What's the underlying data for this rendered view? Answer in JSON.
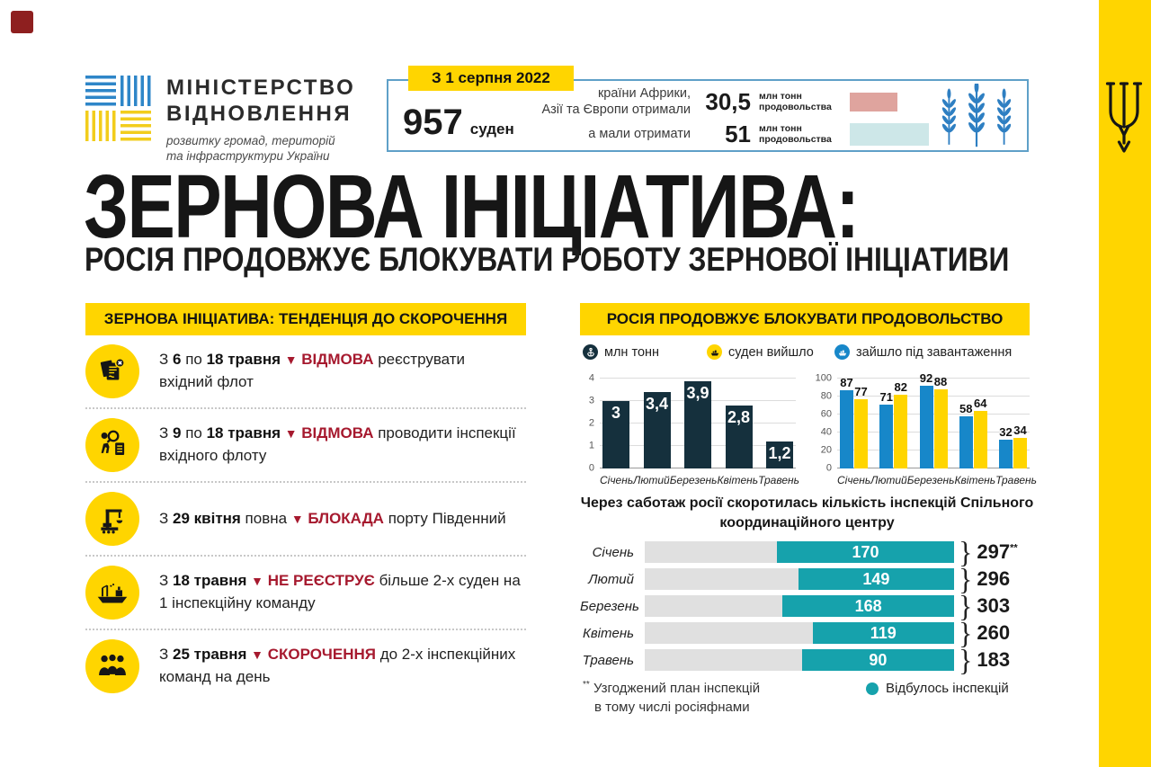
{
  "decorations": {
    "corner_square_color": "#8e1f1f",
    "side_band_color": "#ffd500",
    "emblem_icon": "tryzub-icon"
  },
  "logo": {
    "title_line1": "МІНІСТЕРСТВО",
    "title_line2": "ВІДНОВЛЕННЯ",
    "subtitle_line1": "розвитку громад, територій",
    "subtitle_line2": "та інфраструктури України"
  },
  "header_box": {
    "badge": "З 1 серпня 2022",
    "ships_number": "957",
    "ships_label": "суден",
    "received_label_line1": "країни Африки,",
    "received_label_line2": "Азії та Європи отримали",
    "expected_label": "а мали отримати",
    "received_value": "30,5",
    "expected_value": "51",
    "unit_line1": "млн тонн",
    "unit_line2": "продовольства",
    "received_bar_color": "#dfa49e",
    "expected_bar_color": "#cde7e8",
    "wheat_icon_color": "#2e7fc2"
  },
  "title": {
    "main": "ЗЕРНОВА ІНІЦІАТИВА:",
    "subtitle": "РОСІЯ ПРОДОВЖУЄ БЛОКУВАТИ РОБОТУ ЗЕРНОВОЇ ІНІЦІАТИВИ"
  },
  "left_panel": {
    "header": "ЗЕРНОВА ІНІЦІАТИВА: ТЕНДЕНЦІЯ ДО СКОРОЧЕННЯ",
    "items": [
      {
        "icon": "document-rejected-icon",
        "segments": [
          [
            "З ",
            "n"
          ],
          [
            "6",
            "b"
          ],
          [
            " по ",
            "n"
          ],
          [
            "18 травня",
            "b"
          ],
          [
            " ",
            "n"
          ],
          [
            "▼",
            "t"
          ],
          [
            " ",
            "n"
          ],
          [
            "ВІДМОВА",
            "r"
          ],
          [
            " реєструвати вхідний флот",
            "n"
          ]
        ]
      },
      {
        "icon": "inspection-refused-icon",
        "segments": [
          [
            "З ",
            "n"
          ],
          [
            "9",
            "b"
          ],
          [
            " по ",
            "n"
          ],
          [
            "18 травня",
            "b"
          ],
          [
            " ",
            "n"
          ],
          [
            "▼",
            "t"
          ],
          [
            " ",
            "n"
          ],
          [
            "ВІДМОВА",
            "r"
          ],
          [
            " проводити інспекції вхідного флоту",
            "n"
          ]
        ]
      },
      {
        "icon": "port-crane-icon",
        "segments": [
          [
            "З ",
            "n"
          ],
          [
            "29 квітня",
            "b"
          ],
          [
            " повна ",
            "n"
          ],
          [
            "▼",
            "t"
          ],
          [
            " ",
            "n"
          ],
          [
            "БЛОКАДА",
            "r"
          ],
          [
            " порту Південний",
            "n"
          ]
        ]
      },
      {
        "icon": "cargo-ship-icon",
        "segments": [
          [
            "З ",
            "n"
          ],
          [
            "18 травня",
            "b"
          ],
          [
            " ",
            "n"
          ],
          [
            "▼",
            "t"
          ],
          [
            " ",
            "n"
          ],
          [
            "НЕ РЕЄСТРУЄ",
            "r"
          ],
          [
            " більше 2-х суден на 1 інспекційну команду",
            "n"
          ]
        ]
      },
      {
        "icon": "inspection-teams-icon",
        "segments": [
          [
            "З ",
            "n"
          ],
          [
            "25 травня",
            "b"
          ],
          [
            " ",
            "n"
          ],
          [
            "▼",
            "t"
          ],
          [
            " ",
            "n"
          ],
          [
            "СКОРОЧЕННЯ",
            "r"
          ],
          [
            " до 2-х інспекційних команд на день",
            "n"
          ]
        ]
      }
    ]
  },
  "right_panel": {
    "header": "РОСІЯ ПРОДОВЖУЄ БЛОКУВАТИ ПРОДОВОЛЬСТВО",
    "legend": [
      {
        "icon": "anchor-circle-icon",
        "label": "млн тонн",
        "color": "#15303d",
        "glyph_color": "#ffffff"
      },
      {
        "icon": "ship-circle-icon",
        "label": "суден вийшло",
        "color": "#ffd500",
        "glyph_color": "#161616"
      },
      {
        "icon": "ship-circle-icon",
        "label": "зайшло під завантаження",
        "color": "#1787c9",
        "glyph_color": "#ffffff"
      }
    ],
    "footnote": {
      "marker": "**",
      "line1": "Узгоджений план інспекцій",
      "line2": "в тому числі росіяфнами"
    },
    "bottom_legend": {
      "label": "Відбулось інспекцій",
      "color": "#16a2ac"
    }
  },
  "chart_data": [
    {
      "type": "bar",
      "name": "mln-tonn-by-month",
      "legend": "млн тонн",
      "categories": [
        "Січень",
        "Лютий",
        "Березень",
        "Квітень",
        "Травень"
      ],
      "values": [
        3,
        3.4,
        3.9,
        2.8,
        1.2
      ],
      "value_labels": [
        "3",
        "3,4",
        "3,9",
        "2,8",
        "1,2"
      ],
      "ylim": [
        0,
        4
      ],
      "yticks": [
        4,
        3,
        2,
        1,
        0
      ],
      "bar_color": "#15303d",
      "grid": true
    },
    {
      "type": "bar",
      "name": "ships-by-month",
      "categories": [
        "Січень",
        "Лютий",
        "Березень",
        "Квітень",
        "Травень"
      ],
      "series": [
        {
          "name": "зайшло під завантаження",
          "color": "#1787c9",
          "values": [
            87,
            71,
            92,
            58,
            32
          ]
        },
        {
          "name": "суден вийшло",
          "color": "#ffd500",
          "values": [
            77,
            82,
            88,
            64,
            34
          ]
        }
      ],
      "ylim": [
        0,
        100
      ],
      "yticks": [
        100,
        80,
        60,
        40,
        20,
        0
      ],
      "grid": true
    },
    {
      "type": "bar-horizontal",
      "name": "inspections-by-month",
      "title": "Через саботаж росії скоротилась кількість інспекцій Спільного координаційного центру",
      "categories": [
        "Січень",
        "Лютий",
        "Березень",
        "Квітень",
        "Травень"
      ],
      "values": [
        170,
        149,
        168,
        119,
        90
      ],
      "totals": [
        297,
        296,
        303,
        260,
        183
      ],
      "total_labels": [
        "297",
        "296",
        "303",
        "260",
        "183"
      ],
      "total_sup": [
        "**",
        "",
        "",
        "",
        ""
      ],
      "bar_color": "#16a2ac",
      "track_color": "#e0e0e0"
    }
  ]
}
